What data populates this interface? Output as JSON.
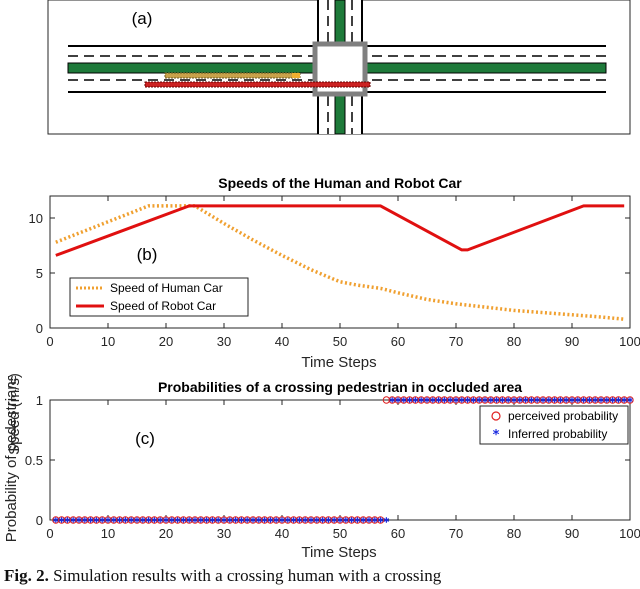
{
  "scene": {
    "panel_label": "(a)",
    "colors": {
      "median": "#1e7a3a",
      "human_car": "#c9a24a",
      "robot_car": "#cc2222",
      "box": "#808080"
    }
  },
  "chart_data": [
    {
      "type": "line",
      "title": "Speeds of the Human and Robot Car",
      "panel_label": "(b)",
      "xlabel": "Time Steps",
      "ylabel": "Speed (m/s)",
      "xlim": [
        0,
        100
      ],
      "ylim": [
        0,
        12
      ],
      "xticks": [
        0,
        10,
        20,
        30,
        40,
        50,
        60,
        70,
        80,
        90,
        100
      ],
      "yticks": [
        0,
        5,
        10
      ],
      "grid": false,
      "legend_position": "bottom-left",
      "series": [
        {
          "name": "Speed of Human Car",
          "color": "#f0a030",
          "style": "dotted",
          "x": [
            1,
            17,
            25,
            30,
            35,
            40,
            45,
            50,
            53,
            57,
            60,
            65,
            70,
            75,
            80,
            85,
            90,
            95,
            99
          ],
          "y": [
            7.8,
            11.1,
            11.1,
            9.5,
            8.0,
            6.6,
            5.3,
            4.2,
            3.9,
            3.6,
            3.2,
            2.6,
            2.2,
            1.9,
            1.6,
            1.4,
            1.2,
            1.0,
            0.8
          ]
        },
        {
          "name": "Speed of Robot Car",
          "color": "#e01010",
          "style": "solid",
          "x": [
            1,
            24,
            57,
            71,
            72,
            92,
            99
          ],
          "y": [
            6.6,
            11.1,
            11.1,
            7.1,
            7.1,
            11.1,
            11.1
          ]
        }
      ]
    },
    {
      "type": "scatter",
      "title": "Probabilities of a crossing pedestrian in occluded area",
      "panel_label": "(c)",
      "xlabel": "Time Steps",
      "ylabel": "Probability of pedestrians",
      "xlim": [
        0,
        100
      ],
      "ylim": [
        0,
        1
      ],
      "xticks": [
        0,
        10,
        20,
        30,
        40,
        50,
        60,
        70,
        80,
        90,
        100
      ],
      "yticks": [
        0,
        0.5,
        1
      ],
      "grid": false,
      "legend_position": "top-right",
      "series": [
        {
          "name": "perceived probability",
          "marker": "circle",
          "color": "#e02020",
          "x": [
            1,
            2,
            3,
            4,
            5,
            6,
            7,
            8,
            9,
            10,
            11,
            12,
            13,
            14,
            15,
            16,
            17,
            18,
            19,
            20,
            21,
            22,
            23,
            24,
            25,
            26,
            27,
            28,
            29,
            30,
            31,
            32,
            33,
            34,
            35,
            36,
            37,
            38,
            39,
            40,
            41,
            42,
            43,
            44,
            45,
            46,
            47,
            48,
            49,
            50,
            51,
            52,
            53,
            54,
            55,
            56,
            57,
            58,
            59,
            60,
            61,
            62,
            63,
            64,
            65,
            66,
            67,
            68,
            69,
            70,
            71,
            72,
            73,
            74,
            75,
            76,
            77,
            78,
            79,
            80,
            81,
            82,
            83,
            84,
            85,
            86,
            87,
            88,
            89,
            90,
            91,
            92,
            93,
            94,
            95,
            96,
            97,
            98,
            99,
            100
          ],
          "y": [
            0,
            0,
            0,
            0,
            0,
            0,
            0,
            0,
            0,
            0,
            0,
            0,
            0,
            0,
            0,
            0,
            0,
            0,
            0,
            0,
            0,
            0,
            0,
            0,
            0,
            0,
            0,
            0,
            0,
            0,
            0,
            0,
            0,
            0,
            0,
            0,
            0,
            0,
            0,
            0,
            0,
            0,
            0,
            0,
            0,
            0,
            0,
            0,
            0,
            0,
            0,
            0,
            0,
            0,
            0,
            0,
            0,
            1,
            1,
            1,
            1,
            1,
            1,
            1,
            1,
            1,
            1,
            1,
            1,
            1,
            1,
            1,
            1,
            1,
            1,
            1,
            1,
            1,
            1,
            1,
            1,
            1,
            1,
            1,
            1,
            1,
            1,
            1,
            1,
            1,
            1,
            1,
            1,
            1,
            1,
            1,
            1,
            1,
            1,
            1
          ]
        },
        {
          "name": "Inferred probability",
          "marker": "asterisk",
          "color": "#1a2ae0",
          "x": [
            1,
            2,
            3,
            4,
            5,
            6,
            7,
            8,
            9,
            10,
            11,
            12,
            13,
            14,
            15,
            16,
            17,
            18,
            19,
            20,
            21,
            22,
            23,
            24,
            25,
            26,
            27,
            28,
            29,
            30,
            31,
            32,
            33,
            34,
            35,
            36,
            37,
            38,
            39,
            40,
            41,
            42,
            43,
            44,
            45,
            46,
            47,
            48,
            49,
            50,
            51,
            52,
            53,
            54,
            55,
            56,
            57,
            58,
            59,
            60,
            61,
            62,
            63,
            64,
            65,
            66,
            67,
            68,
            69,
            70,
            71,
            72,
            73,
            74,
            75,
            76,
            77,
            78,
            79,
            80,
            81,
            82,
            83,
            84,
            85,
            86,
            87,
            88,
            89,
            90,
            91,
            92,
            93,
            94,
            95,
            96,
            97,
            98,
            99,
            100
          ],
          "y": [
            0,
            0,
            0,
            0,
            0,
            0,
            0,
            0,
            0,
            0,
            0,
            0,
            0,
            0,
            0,
            0,
            0,
            0,
            0,
            0,
            0,
            0,
            0,
            0,
            0,
            0,
            0,
            0,
            0,
            0,
            0,
            0,
            0,
            0,
            0,
            0,
            0,
            0,
            0,
            0,
            0,
            0,
            0,
            0,
            0,
            0,
            0,
            0,
            0,
            0,
            0,
            0,
            0,
            0,
            0,
            0,
            0,
            0,
            1,
            1,
            1,
            1,
            1,
            1,
            1,
            1,
            1,
            1,
            1,
            1,
            1,
            1,
            1,
            1,
            1,
            1,
            1,
            1,
            1,
            1,
            1,
            1,
            1,
            1,
            1,
            1,
            1,
            1,
            1,
            1,
            1,
            1,
            1,
            1,
            1,
            1,
            1,
            1,
            1,
            1
          ]
        }
      ]
    }
  ],
  "caption": {
    "label": "Fig. 2.",
    "text": "Simulation results with a crossing human with a crossing"
  }
}
